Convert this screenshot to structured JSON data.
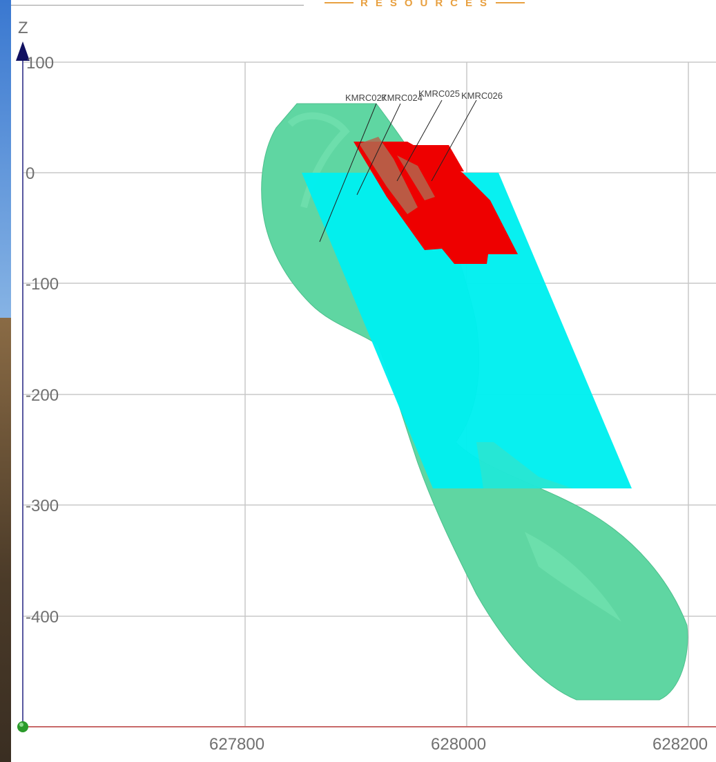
{
  "header": {
    "logo_text": "RESOURCES"
  },
  "axes": {
    "z_label": "Z",
    "z_ticks": [
      "100",
      "0",
      "-100",
      "-200",
      "-300",
      "-400"
    ],
    "x_ticks": [
      "627800",
      "628000",
      "628200"
    ],
    "z_range": [
      -500,
      100
    ],
    "x_range": [
      627620,
      628220
    ]
  },
  "drillholes": [
    "KMRC027",
    "KMRC024",
    "KMRC025",
    "KMRC026"
  ],
  "colors": {
    "orebody": "#5fd6a2",
    "plane": "#00f0f0",
    "high_grade": "#ee0000",
    "grid": "#c8c8c8",
    "z_axis": "#5858a0",
    "x_axis": "#c86868"
  }
}
